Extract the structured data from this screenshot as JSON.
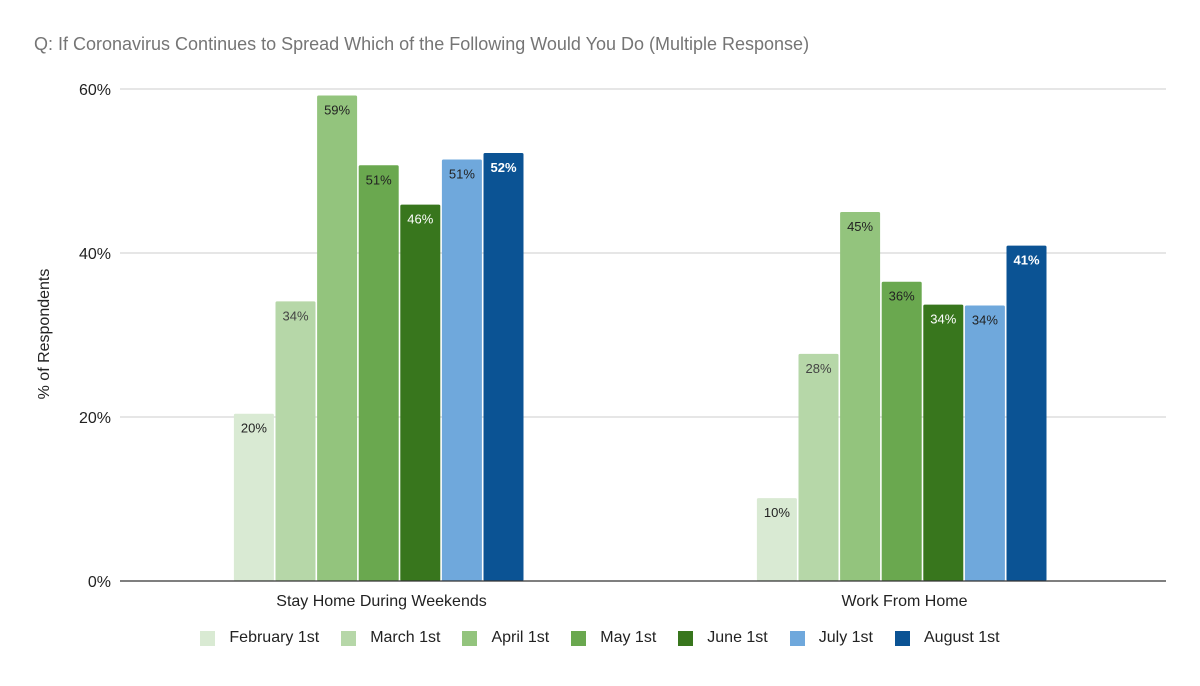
{
  "chart_data": {
    "type": "bar",
    "title": "Q: If Coronavirus Continues to Spread Which of the Following Would You Do (Multiple Response)",
    "xlabel": "",
    "ylabel": "% of Respondents",
    "ylim": [
      0,
      60
    ],
    "yticks": [
      "0%",
      "20%",
      "40%",
      "60%"
    ],
    "grid": true,
    "legend_position": "bottom",
    "categories": [
      "Stay Home During Weekends",
      "Work From Home"
    ],
    "series": [
      {
        "name": "February 1st",
        "color": "#d9ead3",
        "values": [
          20.4,
          10.1
        ],
        "labels": [
          "20%",
          "10%"
        ]
      },
      {
        "name": "March 1st",
        "color": "#b6d7a8",
        "values": [
          34.1,
          27.7
        ],
        "labels": [
          "34%",
          "28%"
        ]
      },
      {
        "name": "April 1st",
        "color": "#93c47d",
        "values": [
          59.2,
          45.0
        ],
        "labels": [
          "59%",
          "45%"
        ]
      },
      {
        "name": "May 1st",
        "color": "#6aa84f",
        "values": [
          50.7,
          36.5
        ],
        "labels": [
          "51%",
          "36%"
        ]
      },
      {
        "name": "June 1st",
        "color": "#38761d",
        "values": [
          45.9,
          33.7
        ],
        "labels": [
          "46%",
          "34%"
        ]
      },
      {
        "name": "July 1st",
        "color": "#6fa8dc",
        "values": [
          51.4,
          33.6
        ],
        "labels": [
          "51%",
          "34%"
        ]
      },
      {
        "name": "August 1st",
        "color": "#0b5394",
        "values": [
          52.2,
          40.9
        ],
        "labels": [
          "52%",
          "41%"
        ]
      }
    ]
  }
}
